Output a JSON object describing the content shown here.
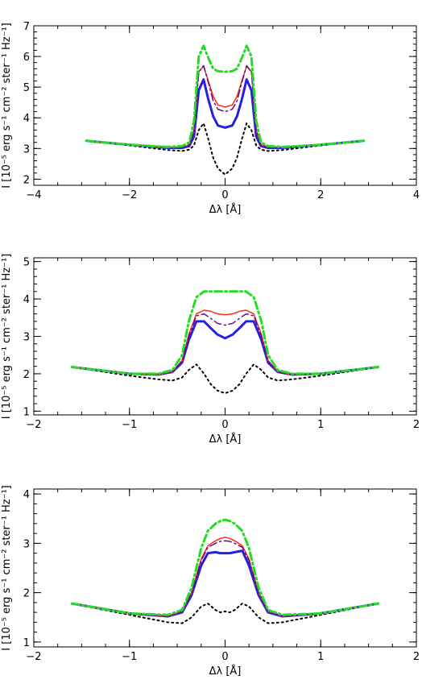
{
  "chart_data": [
    {
      "type": "line",
      "xlabel": "Δλ [Å]",
      "ylabel": "I [10⁻⁵ erg s⁻¹ cm⁻² ster⁻¹ Hz⁻¹]",
      "xlim": [
        -4,
        4
      ],
      "ylim": [
        1.8,
        7
      ],
      "xticks": [
        -4,
        -2,
        0,
        2,
        4
      ],
      "yticks": [
        2,
        3,
        4,
        5,
        6,
        7
      ],
      "grid": false,
      "series": [
        {
          "color": "#000000",
          "style": "dotted",
          "width": 2,
          "x": [
            -2.9,
            -2.0,
            -1.2,
            -0.9,
            -0.75,
            -0.65,
            -0.55,
            -0.45,
            -0.35,
            -0.25,
            -0.15,
            0,
            0.15,
            0.25,
            0.35,
            0.45,
            0.55,
            0.65,
            0.75,
            0.9,
            1.2,
            2.0,
            2.9
          ],
          "y": [
            3.25,
            3.1,
            2.95,
            2.92,
            2.96,
            3.1,
            3.6,
            3.82,
            3.3,
            2.7,
            2.35,
            2.15,
            2.35,
            2.7,
            3.3,
            3.82,
            3.6,
            3.1,
            2.96,
            2.92,
            2.95,
            3.1,
            3.25
          ]
        },
        {
          "color": "#2a1ee0",
          "style": "solid",
          "width": 3,
          "x": [
            -2.9,
            -2.0,
            -1.2,
            -0.9,
            -0.75,
            -0.65,
            -0.55,
            -0.45,
            -0.35,
            -0.25,
            -0.15,
            0,
            0.15,
            0.25,
            0.35,
            0.45,
            0.55,
            0.65,
            0.75,
            0.9,
            1.2,
            2.0,
            2.9
          ],
          "y": [
            3.25,
            3.12,
            3.02,
            3.02,
            3.08,
            3.4,
            4.9,
            5.25,
            4.6,
            4.05,
            3.75,
            3.68,
            3.75,
            4.05,
            4.6,
            5.25,
            4.9,
            3.4,
            3.08,
            3.02,
            3.02,
            3.12,
            3.25
          ]
        },
        {
          "color": "#ff2a10",
          "style": "solid",
          "width": 1.5,
          "x": [
            -2.9,
            -2.0,
            -1.2,
            -0.9,
            -0.75,
            -0.65,
            -0.55,
            -0.45,
            -0.35,
            -0.25,
            -0.15,
            0,
            0.15,
            0.25,
            0.35,
            0.45,
            0.55,
            0.65,
            0.75,
            0.9,
            1.2,
            2.0,
            2.9
          ],
          "y": [
            3.25,
            3.12,
            3.03,
            3.04,
            3.12,
            3.6,
            5.5,
            5.68,
            5.2,
            4.7,
            4.42,
            4.35,
            4.42,
            4.7,
            5.2,
            5.68,
            5.5,
            3.6,
            3.12,
            3.04,
            3.03,
            3.12,
            3.25
          ]
        },
        {
          "color": "#6a0a8a",
          "style": "dashdot",
          "width": 1.5,
          "x": [
            -2.9,
            -2.0,
            -1.2,
            -0.9,
            -0.75,
            -0.65,
            -0.55,
            -0.45,
            -0.35,
            -0.25,
            -0.15,
            0,
            0.15,
            0.25,
            0.35,
            0.45,
            0.55,
            0.65,
            0.75,
            0.9,
            1.2,
            2.0,
            2.9
          ],
          "y": [
            3.25,
            3.12,
            3.03,
            3.04,
            3.12,
            3.6,
            5.5,
            5.7,
            5.15,
            4.55,
            4.28,
            4.2,
            4.28,
            4.55,
            5.15,
            5.7,
            5.5,
            3.6,
            3.12,
            3.04,
            3.03,
            3.12,
            3.25
          ]
        },
        {
          "color": "#22dd22",
          "style": "dashdot",
          "width": 3,
          "x": [
            -2.9,
            -2.0,
            -1.2,
            -0.9,
            -0.75,
            -0.65,
            -0.55,
            -0.45,
            -0.35,
            -0.25,
            -0.15,
            0,
            0.15,
            0.25,
            0.35,
            0.45,
            0.55,
            0.65,
            0.75,
            0.9,
            1.2,
            2.0,
            2.9
          ],
          "y": [
            3.25,
            3.12,
            3.05,
            3.08,
            3.2,
            3.9,
            6.0,
            6.35,
            5.95,
            5.6,
            5.52,
            5.5,
            5.52,
            5.6,
            5.95,
            6.35,
            6.0,
            3.9,
            3.2,
            3.08,
            3.05,
            3.12,
            3.25
          ]
        }
      ]
    },
    {
      "type": "line",
      "xlabel": "Δλ [Å]",
      "ylabel": "I [10⁻⁵ erg s⁻¹ cm⁻² ster⁻¹ Hz⁻¹]",
      "xlim": [
        -2,
        2
      ],
      "ylim": [
        0.9,
        5.1
      ],
      "xticks": [
        -2,
        -1,
        0,
        1,
        2
      ],
      "yticks": [
        1,
        2,
        3,
        4,
        5
      ],
      "grid": false,
      "series": [
        {
          "color": "#000000",
          "style": "dotted",
          "width": 2,
          "x": [
            -1.6,
            -1.0,
            -0.7,
            -0.55,
            -0.45,
            -0.38,
            -0.3,
            -0.22,
            -0.15,
            -0.08,
            0,
            0.08,
            0.15,
            0.22,
            0.3,
            0.38,
            0.45,
            0.55,
            0.7,
            1.0,
            1.6
          ],
          "y": [
            2.18,
            1.95,
            1.85,
            1.82,
            1.9,
            2.1,
            2.25,
            2.0,
            1.72,
            1.55,
            1.48,
            1.55,
            1.72,
            2.0,
            2.25,
            2.1,
            1.9,
            1.82,
            1.85,
            1.95,
            2.18
          ]
        },
        {
          "color": "#2a1ee0",
          "style": "solid",
          "width": 3,
          "x": [
            -1.6,
            -1.0,
            -0.7,
            -0.55,
            -0.45,
            -0.38,
            -0.3,
            -0.22,
            -0.15,
            -0.08,
            0,
            0.08,
            0.15,
            0.22,
            0.3,
            0.38,
            0.45,
            0.55,
            0.7,
            1.0,
            1.6
          ],
          "y": [
            2.18,
            2.0,
            1.98,
            2.05,
            2.3,
            2.9,
            3.4,
            3.4,
            3.22,
            3.05,
            2.95,
            3.05,
            3.22,
            3.4,
            3.4,
            2.9,
            2.3,
            2.05,
            1.98,
            2.0,
            2.18
          ]
        },
        {
          "color": "#ff2a10",
          "style": "solid",
          "width": 1.5,
          "x": [
            -1.6,
            -1.0,
            -0.7,
            -0.55,
            -0.45,
            -0.38,
            -0.3,
            -0.22,
            -0.15,
            -0.08,
            0,
            0.08,
            0.15,
            0.22,
            0.3,
            0.38,
            0.45,
            0.55,
            0.7,
            1.0,
            1.6
          ],
          "y": [
            2.18,
            2.0,
            1.98,
            2.05,
            2.35,
            3.05,
            3.6,
            3.7,
            3.67,
            3.6,
            3.58,
            3.6,
            3.67,
            3.7,
            3.6,
            3.05,
            2.35,
            2.05,
            1.98,
            2.0,
            2.18
          ]
        },
        {
          "color": "#6a0a8a",
          "style": "dashdot",
          "width": 1.5,
          "x": [
            -1.6,
            -1.0,
            -0.7,
            -0.55,
            -0.45,
            -0.38,
            -0.3,
            -0.22,
            -0.15,
            -0.08,
            0,
            0.08,
            0.15,
            0.22,
            0.3,
            0.38,
            0.45,
            0.55,
            0.7,
            1.0,
            1.6
          ],
          "y": [
            2.18,
            2.0,
            1.98,
            2.05,
            2.35,
            3.0,
            3.55,
            3.6,
            3.48,
            3.35,
            3.3,
            3.35,
            3.48,
            3.6,
            3.55,
            3.0,
            2.35,
            2.05,
            1.98,
            2.0,
            2.18
          ]
        },
        {
          "color": "#22dd22",
          "style": "dashdot",
          "width": 3,
          "x": [
            -1.6,
            -1.0,
            -0.7,
            -0.55,
            -0.45,
            -0.38,
            -0.3,
            -0.22,
            -0.15,
            -0.08,
            0,
            0.08,
            0.15,
            0.22,
            0.3,
            0.38,
            0.45,
            0.55,
            0.7,
            1.0,
            1.6
          ],
          "y": [
            2.18,
            2.0,
            2.0,
            2.1,
            2.5,
            3.4,
            4.05,
            4.2,
            4.2,
            4.2,
            4.2,
            4.2,
            4.2,
            4.2,
            4.05,
            3.4,
            2.5,
            2.1,
            2.0,
            2.0,
            2.18
          ]
        }
      ]
    },
    {
      "type": "line",
      "xlabel": "Δλ [Å]",
      "ylabel": "I [10⁻⁵ erg s⁻¹ cm⁻² ster⁻¹ Hz⁻¹]",
      "xlim": [
        -2,
        2
      ],
      "ylim": [
        0.9,
        4.1
      ],
      "xticks": [
        -2,
        -1,
        0,
        1,
        2
      ],
      "yticks": [
        1,
        2,
        3,
        4
      ],
      "grid": false,
      "series": [
        {
          "color": "#000000",
          "style": "dotted",
          "width": 2,
          "x": [
            -1.6,
            -1.0,
            -0.6,
            -0.45,
            -0.35,
            -0.25,
            -0.18,
            -0.1,
            -0.05,
            0,
            0.05,
            0.1,
            0.18,
            0.25,
            0.35,
            0.45,
            0.6,
            1.0,
            1.6
          ],
          "y": [
            1.78,
            1.55,
            1.4,
            1.38,
            1.5,
            1.72,
            1.78,
            1.65,
            1.6,
            1.62,
            1.6,
            1.65,
            1.78,
            1.72,
            1.5,
            1.38,
            1.4,
            1.55,
            1.78
          ]
        },
        {
          "color": "#2a1ee0",
          "style": "solid",
          "width": 3,
          "x": [
            -1.6,
            -1.0,
            -0.6,
            -0.45,
            -0.35,
            -0.25,
            -0.18,
            -0.1,
            -0.05,
            0,
            0.05,
            0.1,
            0.18,
            0.25,
            0.35,
            0.45,
            0.6,
            1.0,
            1.6
          ],
          "y": [
            1.78,
            1.58,
            1.52,
            1.6,
            1.95,
            2.55,
            2.8,
            2.82,
            2.8,
            2.8,
            2.8,
            2.82,
            2.85,
            2.55,
            1.95,
            1.6,
            1.52,
            1.58,
            1.78
          ]
        },
        {
          "color": "#ff2a10",
          "style": "solid",
          "width": 1.5,
          "x": [
            -1.6,
            -1.0,
            -0.6,
            -0.45,
            -0.35,
            -0.25,
            -0.18,
            -0.1,
            -0.05,
            0,
            0.05,
            0.1,
            0.18,
            0.25,
            0.35,
            0.45,
            0.6,
            1.0,
            1.6
          ],
          "y": [
            1.78,
            1.58,
            1.52,
            1.62,
            2.0,
            2.68,
            2.95,
            3.05,
            3.1,
            3.12,
            3.1,
            3.05,
            2.95,
            2.68,
            2.0,
            1.62,
            1.52,
            1.58,
            1.78
          ]
        },
        {
          "color": "#6a0a8a",
          "style": "dashdot",
          "width": 1.5,
          "x": [
            -1.6,
            -1.0,
            -0.6,
            -0.45,
            -0.35,
            -0.25,
            -0.18,
            -0.1,
            -0.05,
            0,
            0.05,
            0.1,
            0.18,
            0.25,
            0.35,
            0.45,
            0.6,
            1.0,
            1.6
          ],
          "y": [
            1.78,
            1.58,
            1.52,
            1.62,
            2.0,
            2.65,
            2.92,
            3.0,
            3.04,
            3.05,
            3.04,
            3.0,
            2.92,
            2.65,
            2.0,
            1.62,
            1.52,
            1.58,
            1.78
          ]
        },
        {
          "color": "#22dd22",
          "style": "dashdot",
          "width": 3,
          "x": [
            -1.6,
            -1.0,
            -0.6,
            -0.45,
            -0.35,
            -0.25,
            -0.18,
            -0.1,
            -0.05,
            0,
            0.05,
            0.1,
            0.18,
            0.25,
            0.35,
            0.45,
            0.6,
            1.0,
            1.6
          ],
          "y": [
            1.78,
            1.58,
            1.55,
            1.65,
            2.1,
            2.9,
            3.25,
            3.4,
            3.45,
            3.48,
            3.45,
            3.4,
            3.25,
            2.9,
            2.1,
            1.65,
            1.55,
            1.58,
            1.78
          ]
        }
      ]
    }
  ]
}
